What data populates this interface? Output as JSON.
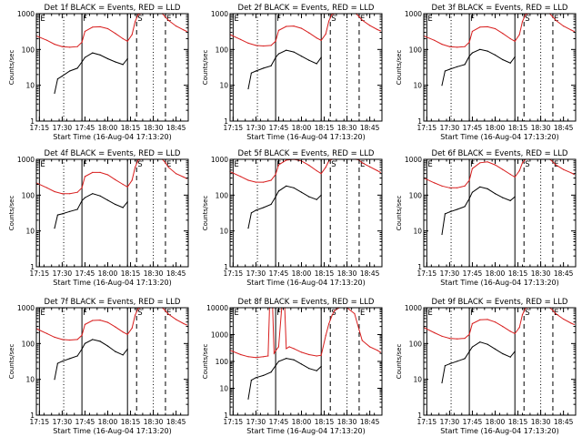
{
  "layout": {
    "cols": 3,
    "rows": 3
  },
  "colors": {
    "events": "#000000",
    "lld": "#d81e1e",
    "axes": "#000000",
    "background": "#ffffff"
  },
  "shared": {
    "xlabel": "Start Time (16-Aug-04 17:13:20)",
    "ylabel": "Counts/sec",
    "x_tick_labels": [
      "17:15",
      "17:30",
      "17:45",
      "18:00",
      "18:15",
      "18:30",
      "18:45"
    ],
    "x_range_minutes": [
      "17:13",
      "18:53"
    ],
    "y_scale": "log"
  },
  "markers": [
    {
      "label": "E",
      "time": "17:15",
      "style": "solid"
    },
    {
      "label": "F",
      "time": "17:43",
      "style": "solid"
    },
    {
      "label": "",
      "time": "17:31",
      "style": "dotted"
    },
    {
      "label": "",
      "time": "18:13",
      "style": "solid"
    },
    {
      "label": "S",
      "time": "18:19",
      "style": "dashed"
    },
    {
      "label": "",
      "time": "18:30",
      "style": "dotted"
    },
    {
      "label": "E",
      "time": "18:38",
      "style": "dashed"
    }
  ],
  "chart_data": [
    {
      "type": "line",
      "title": "Det 1f BLACK = Events, RED = LLD",
      "ylim": [
        1,
        1000
      ],
      "y_tick_labels": [
        "1",
        "10",
        "100",
        "1000"
      ],
      "series": [
        {
          "name": "Events",
          "color": "#000000",
          "x": [
            "17:25",
            "17:27",
            "17:30",
            "17:35",
            "17:40",
            "17:43",
            "17:45",
            "17:50",
            "17:55",
            "18:00",
            "18:05",
            "18:10",
            "18:13"
          ],
          "y": [
            6,
            15,
            18,
            25,
            30,
            45,
            60,
            80,
            70,
            55,
            45,
            38,
            55
          ]
        },
        {
          "name": "LLD",
          "color": "#d81e1e",
          "x": [
            "17:13",
            "17:20",
            "17:25",
            "17:30",
            "17:35",
            "17:40",
            "17:43",
            "17:45",
            "17:50",
            "17:55",
            "18:00",
            "18:05",
            "18:10",
            "18:13",
            "18:16",
            "18:18",
            "18:20",
            "18:22",
            "18:36",
            "18:38",
            "18:40",
            "18:45",
            "18:50",
            "18:52"
          ],
          "y": [
            240,
            180,
            140,
            120,
            115,
            120,
            160,
            320,
            420,
            430,
            380,
            280,
            200,
            170,
            260,
            600,
            950,
            1000,
            1000,
            800,
            650,
            450,
            350,
            320
          ]
        }
      ]
    },
    {
      "type": "line",
      "title": "Det 2f BLACK = Events, RED = LLD",
      "ylim": [
        1,
        1000
      ],
      "y_tick_labels": [
        "1",
        "10",
        "100",
        "1000"
      ],
      "series": [
        {
          "name": "Events",
          "color": "#000000",
          "x": [
            "17:25",
            "17:27",
            "17:30",
            "17:35",
            "17:40",
            "17:43",
            "17:45",
            "17:50",
            "17:55",
            "18:00",
            "18:05",
            "18:10",
            "18:13"
          ],
          "y": [
            8,
            22,
            25,
            30,
            35,
            60,
            75,
            95,
            85,
            65,
            50,
            40,
            60
          ]
        },
        {
          "name": "LLD",
          "color": "#d81e1e",
          "x": [
            "17:13",
            "17:20",
            "17:25",
            "17:30",
            "17:35",
            "17:40",
            "17:43",
            "17:45",
            "17:50",
            "17:55",
            "18:00",
            "18:05",
            "18:10",
            "18:13",
            "18:16",
            "18:18",
            "18:20",
            "18:22",
            "18:36",
            "18:38",
            "18:40",
            "18:45",
            "18:50",
            "18:52"
          ],
          "y": [
            260,
            190,
            150,
            130,
            125,
            130,
            170,
            340,
            440,
            450,
            390,
            290,
            210,
            180,
            270,
            620,
            950,
            1000,
            1000,
            820,
            660,
            470,
            360,
            330
          ]
        }
      ]
    },
    {
      "type": "line",
      "title": "Det 3f BLACK = Events, RED = LLD",
      "ylim": [
        1,
        1000
      ],
      "y_tick_labels": [
        "1",
        "10",
        "100",
        "1000"
      ],
      "series": [
        {
          "name": "Events",
          "color": "#000000",
          "x": [
            "17:25",
            "17:27",
            "17:30",
            "17:35",
            "17:40",
            "17:43",
            "17:45",
            "17:50",
            "17:55",
            "18:00",
            "18:05",
            "18:10",
            "18:13"
          ],
          "y": [
            10,
            25,
            28,
            33,
            38,
            65,
            80,
            100,
            90,
            70,
            52,
            42,
            62
          ]
        },
        {
          "name": "LLD",
          "color": "#d81e1e",
          "x": [
            "17:13",
            "17:20",
            "17:25",
            "17:30",
            "17:35",
            "17:40",
            "17:43",
            "17:45",
            "17:50",
            "17:55",
            "18:00",
            "18:05",
            "18:10",
            "18:13",
            "18:16",
            "18:18",
            "18:20",
            "18:22",
            "18:36",
            "18:38",
            "18:40",
            "18:45",
            "18:50",
            "18:52"
          ],
          "y": [
            240,
            180,
            140,
            120,
            115,
            120,
            160,
            320,
            420,
            430,
            380,
            280,
            200,
            170,
            260,
            600,
            950,
            1000,
            1000,
            800,
            650,
            450,
            350,
            320
          ]
        }
      ]
    },
    {
      "type": "line",
      "title": "Det 4f BLACK = Events, RED = LLD",
      "ylim": [
        1,
        1000
      ],
      "y_tick_labels": [
        "1",
        "10",
        "100",
        "1000"
      ],
      "series": [
        {
          "name": "Events",
          "color": "#000000",
          "x": [
            "17:25",
            "17:27",
            "17:30",
            "17:35",
            "17:40",
            "17:43",
            "17:45",
            "17:50",
            "17:55",
            "18:00",
            "18:05",
            "18:10",
            "18:13"
          ],
          "y": [
            12,
            28,
            30,
            35,
            40,
            70,
            85,
            110,
            95,
            72,
            55,
            45,
            65
          ]
        },
        {
          "name": "LLD",
          "color": "#d81e1e",
          "x": [
            "17:13",
            "17:20",
            "17:25",
            "17:30",
            "17:35",
            "17:40",
            "17:43",
            "17:45",
            "17:50",
            "17:55",
            "18:00",
            "18:05",
            "18:10",
            "18:13",
            "18:16",
            "18:18",
            "18:20",
            "18:22",
            "18:36",
            "18:38",
            "18:40",
            "18:45",
            "18:50",
            "18:52"
          ],
          "y": [
            220,
            160,
            125,
            110,
            110,
            120,
            160,
            330,
            430,
            430,
            370,
            270,
            200,
            170,
            260,
            600,
            950,
            1000,
            1000,
            800,
            600,
            400,
            320,
            290
          ]
        }
      ]
    },
    {
      "type": "line",
      "title": "Det 5f BLACK = Events, RED = LLD",
      "ylim": [
        1,
        1000
      ],
      "y_tick_labels": [
        "1",
        "10",
        "100",
        "1000"
      ],
      "series": [
        {
          "name": "Events",
          "color": "#000000",
          "x": [
            "17:25",
            "17:27",
            "17:30",
            "17:35",
            "17:40",
            "17:43",
            "17:45",
            "17:50",
            "17:55",
            "18:00",
            "18:05",
            "18:10",
            "18:13"
          ],
          "y": [
            12,
            32,
            38,
            45,
            55,
            90,
            130,
            180,
            160,
            120,
            90,
            75,
            100
          ]
        },
        {
          "name": "LLD",
          "color": "#d81e1e",
          "x": [
            "17:13",
            "17:20",
            "17:25",
            "17:30",
            "17:35",
            "17:40",
            "17:43",
            "17:45",
            "17:50",
            "17:55",
            "18:00",
            "18:05",
            "18:10",
            "18:13",
            "18:16",
            "18:18",
            "18:20",
            "18:22",
            "18:36",
            "18:38",
            "18:40",
            "18:45",
            "18:50",
            "18:52"
          ],
          "y": [
            450,
            330,
            260,
            230,
            230,
            260,
            380,
            700,
            950,
            1000,
            900,
            680,
            480,
            400,
            600,
            900,
            1000,
            1000,
            1000,
            950,
            800,
            620,
            480,
            430
          ]
        }
      ]
    },
    {
      "type": "line",
      "title": "Det 6f BLACK = Events, RED = LLD",
      "ylim": [
        1,
        1000
      ],
      "y_tick_labels": [
        "1",
        "10",
        "100",
        "1000"
      ],
      "series": [
        {
          "name": "Events",
          "color": "#000000",
          "x": [
            "17:25",
            "17:27",
            "17:30",
            "17:35",
            "17:40",
            "17:43",
            "17:45",
            "17:50",
            "17:55",
            "18:00",
            "18:05",
            "18:10",
            "18:13"
          ],
          "y": [
            8,
            30,
            34,
            40,
            48,
            80,
            120,
            170,
            150,
            110,
            85,
            70,
            90
          ]
        },
        {
          "name": "LLD",
          "color": "#d81e1e",
          "x": [
            "17:13",
            "17:20",
            "17:25",
            "17:30",
            "17:35",
            "17:40",
            "17:43",
            "17:45",
            "17:50",
            "17:55",
            "18:00",
            "18:05",
            "18:10",
            "18:13",
            "18:16",
            "18:18",
            "18:20",
            "18:22",
            "18:36",
            "18:38",
            "18:40",
            "18:45",
            "18:50",
            "18:52"
          ],
          "y": [
            300,
            220,
            180,
            160,
            160,
            180,
            260,
            550,
            800,
            850,
            700,
            520,
            380,
            320,
            480,
            800,
            1000,
            1000,
            1000,
            850,
            700,
            520,
            420,
            380
          ]
        }
      ]
    },
    {
      "type": "line",
      "title": "Det 7f BLACK = Events, RED = LLD",
      "ylim": [
        1,
        1000
      ],
      "y_tick_labels": [
        "1",
        "10",
        "100",
        "1000"
      ],
      "series": [
        {
          "name": "Events",
          "color": "#000000",
          "x": [
            "17:25",
            "17:27",
            "17:30",
            "17:35",
            "17:40",
            "17:43",
            "17:45",
            "17:50",
            "17:55",
            "18:00",
            "18:05",
            "18:10",
            "18:13"
          ],
          "y": [
            10,
            28,
            32,
            38,
            45,
            70,
            100,
            130,
            115,
            85,
            60,
            48,
            70
          ]
        },
        {
          "name": "LLD",
          "color": "#d81e1e",
          "x": [
            "17:13",
            "17:20",
            "17:25",
            "17:30",
            "17:35",
            "17:40",
            "17:43",
            "17:45",
            "17:50",
            "17:55",
            "18:00",
            "18:05",
            "18:10",
            "18:13",
            "18:16",
            "18:18",
            "18:20",
            "18:22",
            "18:36",
            "18:38",
            "18:40",
            "18:45",
            "18:50",
            "18:52"
          ],
          "y": [
            260,
            190,
            150,
            130,
            125,
            130,
            170,
            340,
            440,
            450,
            390,
            290,
            210,
            180,
            270,
            620,
            950,
            1000,
            1000,
            820,
            660,
            470,
            360,
            330
          ]
        }
      ]
    },
    {
      "type": "line",
      "title": "Det 8f BLACK = Events, RED = LLD",
      "ylim": [
        1,
        10000
      ],
      "y_tick_labels": [
        "1",
        "10",
        "100",
        "1000",
        "10000"
      ],
      "series": [
        {
          "name": "Events",
          "color": "#000000",
          "x": [
            "17:25",
            "17:27",
            "17:30",
            "17:35",
            "17:40",
            "17:43",
            "17:45",
            "17:50",
            "17:55",
            "18:00",
            "18:05",
            "18:10",
            "18:13"
          ],
          "y": [
            4,
            20,
            25,
            30,
            40,
            70,
            100,
            130,
            115,
            80,
            55,
            45,
            65
          ]
        },
        {
          "name": "LLD",
          "color": "#d81e1e",
          "x": [
            "17:13",
            "17:20",
            "17:25",
            "17:30",
            "17:35",
            "17:38",
            "17:39",
            "17:41",
            "17:42",
            "17:43",
            "17:45",
            "17:47",
            "17:49",
            "17:50",
            "17:52",
            "17:55",
            "18:00",
            "18:05",
            "18:10",
            "18:13",
            "18:16",
            "18:18",
            "18:20",
            "18:22",
            "18:25",
            "18:30",
            "18:35",
            "18:38",
            "18:40",
            "18:45",
            "18:50",
            "18:52"
          ],
          "y": [
            260,
            180,
            150,
            140,
            150,
            160,
            10000,
            10000,
            200,
            250,
            350,
            10000,
            10000,
            300,
            350,
            300,
            220,
            180,
            160,
            170,
            900,
            2500,
            5000,
            8000,
            10000,
            10000,
            6000,
            1500,
            600,
            350,
            260,
            220
          ]
        }
      ]
    },
    {
      "type": "line",
      "title": "Det 9f BLACK = Events, RED = LLD",
      "ylim": [
        1,
        1000
      ],
      "y_tick_labels": [
        "1",
        "10",
        "100",
        "1000"
      ],
      "series": [
        {
          "name": "Events",
          "color": "#000000",
          "x": [
            "17:25",
            "17:27",
            "17:30",
            "17:35",
            "17:40",
            "17:43",
            "17:45",
            "17:50",
            "17:55",
            "18:00",
            "18:05",
            "18:10",
            "18:13"
          ],
          "y": [
            8,
            24,
            27,
            32,
            38,
            60,
            80,
            110,
            95,
            70,
            52,
            42,
            60
          ]
        },
        {
          "name": "LLD",
          "color": "#d81e1e",
          "x": [
            "17:13",
            "17:20",
            "17:25",
            "17:30",
            "17:35",
            "17:40",
            "17:43",
            "17:45",
            "17:50",
            "17:55",
            "18:00",
            "18:05",
            "18:10",
            "18:13",
            "18:16",
            "18:18",
            "18:20",
            "18:22",
            "18:36",
            "18:38",
            "18:40",
            "18:45",
            "18:50",
            "18:52"
          ],
          "y": [
            280,
            200,
            160,
            140,
            135,
            140,
            180,
            360,
            460,
            470,
            400,
            300,
            220,
            190,
            280,
            640,
            970,
            1000,
            1000,
            840,
            680,
            480,
            370,
            340
          ]
        }
      ]
    }
  ]
}
